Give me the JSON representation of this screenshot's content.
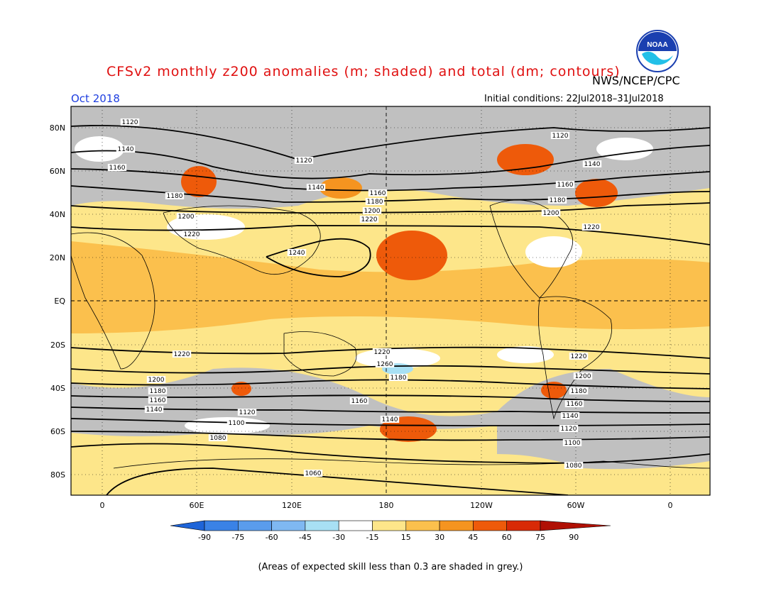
{
  "header": {
    "title": "CFSv2 monthly z200 anomalies (m; shaded) and total (dm; contours)",
    "agency": "NWS/NCEP/CPC",
    "period": "Oct 2018",
    "initial_conditions": "Initial conditions: 22Jul2018–31Jul2018",
    "logo_text": "NOAA"
  },
  "map": {
    "lat_labels": [
      "80N",
      "60N",
      "40N",
      "20N",
      "EQ",
      "20S",
      "40S",
      "60S",
      "80S"
    ],
    "lon_labels": [
      "0",
      "60E",
      "120E",
      "180",
      "120W",
      "60W",
      "0"
    ],
    "contour_labels": [
      "1240",
      "1220",
      "1200",
      "1180",
      "1160",
      "1140",
      "1120",
      "1100",
      "1080",
      "1060"
    ]
  },
  "colorbar": {
    "ticks": [
      "-90",
      "-75",
      "-60",
      "-45",
      "-30",
      "-15",
      "15",
      "30",
      "45",
      "60",
      "75",
      "90"
    ],
    "colors": [
      "#1e64d8",
      "#3a82e6",
      "#5a9cec",
      "#7fb8f2",
      "#a8e0f4",
      "#ffffff",
      "#fde68a",
      "#fbc04d",
      "#f59420",
      "#ee5a0a",
      "#d82a06",
      "#b01004"
    ]
  },
  "footnote": "(Areas of expected skill less than 0.3 are shaded in grey.)"
}
